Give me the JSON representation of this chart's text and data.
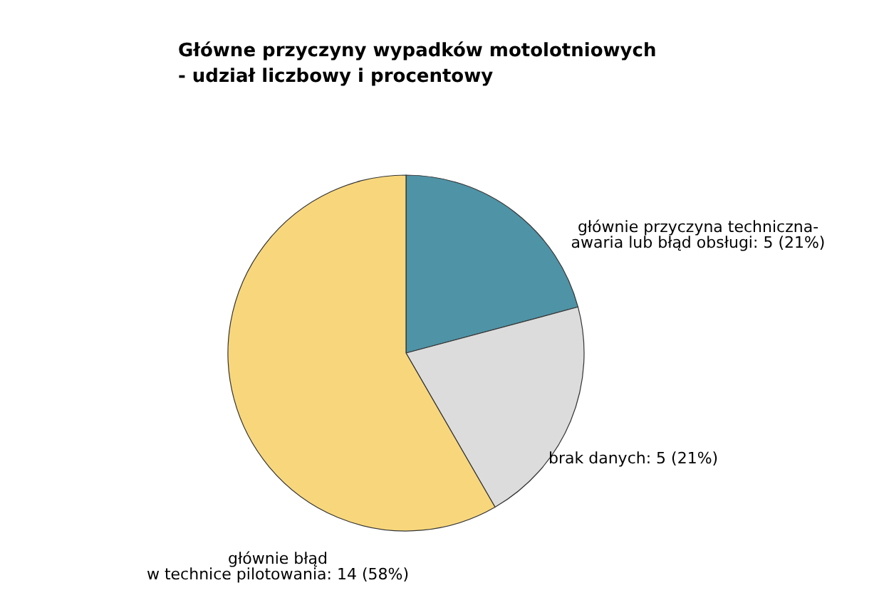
{
  "chart_data": {
    "type": "pie",
    "title": "Główne przyczyny wypadków motolotniowych\n- udział liczbowy i procentowy",
    "categories": [
      "głównie przyczyna techniczna-\nawaria lub błąd obsługi",
      "brak danych",
      "głównie błąd\nw technice pilotowania"
    ],
    "values": [
      5,
      5,
      14
    ],
    "value_labels": [
      "5 (21%)",
      "5 (21%)",
      "14 (58%)"
    ],
    "colors": [
      "#4f93a6",
      "#dcdcdc",
      "#f8d77c"
    ],
    "legend": false
  }
}
